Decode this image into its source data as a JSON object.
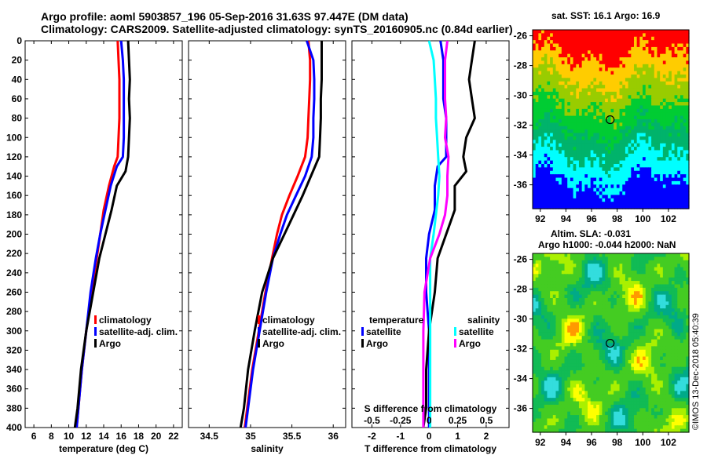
{
  "header": {
    "title_line1": "Argo profile: aoml 5903857_196 05-Sep-2016 31.63S 97.447E (DM data)",
    "title_line2": "Climatology: CARS2009. Satellite-adjusted climatology: synTS_20160905.nc (0.84d earlier)"
  },
  "sst_map": {
    "title": "sat. SST: 16.1 Argo: 16.9",
    "x_ticks": [
      "92",
      "94",
      "96",
      "98",
      "100",
      "102"
    ],
    "y_ticks": [
      "-26",
      "-28",
      "-30",
      "-32",
      "-34",
      "-36"
    ],
    "marker": {
      "lon": 97.45,
      "lat": -31.63
    }
  },
  "sla_map": {
    "title_line1": "Altim. SLA: -0.031",
    "title_line2": "Argo h1000: -0.044 h2000: NaN",
    "x_ticks": [
      "92",
      "94",
      "96",
      "98",
      "100",
      "102"
    ],
    "y_ticks": [
      "-26",
      "-28",
      "-30",
      "-32",
      "-34",
      "-36"
    ],
    "marker": {
      "lon": 97.45,
      "lat": -31.63
    },
    "credit": "©IMOS 13-Dec-2018 05:40:39"
  },
  "colors": {
    "climatology": "#ff0000",
    "satellite": "#0000ff",
    "argo": "#000000",
    "sat_salinity": "#00ffff",
    "argo_salinity": "#ff00ff"
  },
  "chart_data": [
    {
      "type": "line",
      "panel": "temperature",
      "xlabel": "temperature (deg C)",
      "ylabel": "",
      "xlim": [
        5,
        23
      ],
      "ylim": [
        0,
        400
      ],
      "x_ticks": [
        "6",
        "8",
        "10",
        "12",
        "14",
        "16",
        "18",
        "20",
        "22"
      ],
      "y_ticks": [
        "0",
        "20",
        "40",
        "60",
        "80",
        "100",
        "120",
        "140",
        "160",
        "180",
        "200",
        "220",
        "240",
        "260",
        "280",
        "300",
        "320",
        "340",
        "360",
        "380",
        "400"
      ],
      "legend": [
        "climatology",
        "satellite-adj. clim.",
        "Argo"
      ],
      "series": [
        {
          "name": "climatology",
          "color": "#ff0000",
          "points": [
            [
              15.6,
              0
            ],
            [
              15.7,
              20
            ],
            [
              15.8,
              40
            ],
            [
              15.8,
              60
            ],
            [
              15.8,
              80
            ],
            [
              15.7,
              100
            ],
            [
              15.6,
              120
            ],
            [
              15.2,
              130
            ],
            [
              14.6,
              150
            ],
            [
              14.0,
              175
            ],
            [
              13.6,
              200
            ],
            [
              13.2,
              225
            ],
            [
              12.6,
              260
            ],
            [
              12.0,
              300
            ],
            [
              11.5,
              340
            ],
            [
              11.1,
              380
            ],
            [
              10.9,
              400
            ]
          ]
        },
        {
          "name": "satellite-adj. clim.",
          "color": "#0000ff",
          "points": [
            [
              16.0,
              0
            ],
            [
              16.2,
              20
            ],
            [
              16.3,
              40
            ],
            [
              16.3,
              60
            ],
            [
              16.3,
              80
            ],
            [
              16.3,
              100
            ],
            [
              16.2,
              120
            ],
            [
              15.5,
              130
            ],
            [
              14.8,
              150
            ],
            [
              14.2,
              175
            ],
            [
              13.6,
              200
            ],
            [
              13.1,
              225
            ],
            [
              12.5,
              260
            ],
            [
              12.0,
              300
            ],
            [
              11.5,
              340
            ],
            [
              11.1,
              380
            ],
            [
              10.9,
              400
            ]
          ]
        },
        {
          "name": "Argo",
          "color": "#000000",
          "points": [
            [
              16.8,
              0
            ],
            [
              16.9,
              20
            ],
            [
              17.0,
              40
            ],
            [
              16.9,
              60
            ],
            [
              17.0,
              80
            ],
            [
              16.9,
              100
            ],
            [
              16.8,
              120
            ],
            [
              16.5,
              135
            ],
            [
              15.5,
              150
            ],
            [
              14.9,
              175
            ],
            [
              14.2,
              200
            ],
            [
              13.5,
              225
            ],
            [
              12.8,
              260
            ],
            [
              12.0,
              300
            ],
            [
              11.4,
              340
            ],
            [
              11.0,
              380
            ],
            [
              10.7,
              400
            ]
          ]
        }
      ]
    },
    {
      "type": "line",
      "panel": "salinity",
      "xlabel": "salinity",
      "ylabel": "",
      "xlim": [
        34.25,
        36.15
      ],
      "ylim": [
        0,
        400
      ],
      "x_ticks": [
        "34.5",
        "35",
        "35.5",
        "36"
      ],
      "legend": [
        "climatology",
        "satellite-adj. clim.",
        "Argo"
      ],
      "series": [
        {
          "name": "climatology",
          "color": "#ff0000",
          "points": [
            [
              35.7,
              0
            ],
            [
              35.72,
              20
            ],
            [
              35.72,
              40
            ],
            [
              35.71,
              60
            ],
            [
              35.7,
              80
            ],
            [
              35.69,
              100
            ],
            [
              35.66,
              120
            ],
            [
              35.57,
              140
            ],
            [
              35.47,
              160
            ],
            [
              35.38,
              180
            ],
            [
              35.32,
              200
            ],
            [
              35.26,
              225
            ],
            [
              35.18,
              260
            ],
            [
              35.1,
              300
            ],
            [
              35.02,
              340
            ],
            [
              34.96,
              380
            ],
            [
              34.93,
              400
            ]
          ]
        },
        {
          "name": "satellite-adj. clim.",
          "color": "#0000ff",
          "points": [
            [
              35.68,
              0
            ],
            [
              35.76,
              20
            ],
            [
              35.77,
              40
            ],
            [
              35.77,
              60
            ],
            [
              35.76,
              80
            ],
            [
              35.76,
              100
            ],
            [
              35.74,
              120
            ],
            [
              35.66,
              140
            ],
            [
              35.55,
              160
            ],
            [
              35.44,
              180
            ],
            [
              35.36,
              200
            ],
            [
              35.27,
              225
            ],
            [
              35.19,
              260
            ],
            [
              35.11,
              300
            ],
            [
              35.03,
              340
            ],
            [
              34.97,
              380
            ],
            [
              34.94,
              400
            ]
          ]
        },
        {
          "name": "Argo",
          "color": "#000000",
          "points": [
            [
              35.86,
              0
            ],
            [
              35.86,
              20
            ],
            [
              35.86,
              40
            ],
            [
              35.85,
              60
            ],
            [
              35.85,
              80
            ],
            [
              35.84,
              100
            ],
            [
              35.83,
              120
            ],
            [
              35.73,
              140
            ],
            [
              35.63,
              160
            ],
            [
              35.52,
              180
            ],
            [
              35.41,
              200
            ],
            [
              35.27,
              225
            ],
            [
              35.14,
              260
            ],
            [
              35.05,
              300
            ],
            [
              34.97,
              340
            ],
            [
              34.92,
              380
            ],
            [
              34.88,
              400
            ]
          ]
        }
      ]
    },
    {
      "type": "line",
      "panel": "difference",
      "xlabel": "T difference from climatology",
      "top_label": "S difference from climatology",
      "ylabel": "",
      "xlim": [
        -2.7,
        2.8
      ],
      "ylim": [
        0,
        400
      ],
      "x_ticks": [
        "-2",
        "-1",
        "0",
        "1",
        "2"
      ],
      "s_ticks": [
        "-0.5",
        "-0.25",
        "0",
        "0.25",
        "0.5"
      ],
      "legend_temperature": {
        "heading": "temperature",
        "entries": [
          "satellite",
          "Argo"
        ]
      },
      "legend_salinity": {
        "heading": "salinity",
        "entries": [
          "satellite",
          "Argo"
        ]
      },
      "series": [
        {
          "name": "temperature satellite",
          "color": "#0000ff",
          "points": [
            [
              0.4,
              0
            ],
            [
              0.5,
              20
            ],
            [
              0.5,
              40
            ],
            [
              0.5,
              60
            ],
            [
              0.6,
              80
            ],
            [
              0.6,
              100
            ],
            [
              0.6,
              120
            ],
            [
              0.3,
              130
            ],
            [
              0.2,
              150
            ],
            [
              0.2,
              175
            ],
            [
              0.0,
              200
            ],
            [
              -0.1,
              225
            ],
            [
              -0.1,
              260
            ],
            [
              0.0,
              300
            ],
            [
              0.0,
              340
            ],
            [
              0.0,
              380
            ],
            [
              0.0,
              400
            ]
          ]
        },
        {
          "name": "temperature Argo",
          "color": "#000000",
          "points": [
            [
              1.6,
              0
            ],
            [
              1.5,
              20
            ],
            [
              1.4,
              40
            ],
            [
              1.5,
              60
            ],
            [
              1.6,
              80
            ],
            [
              1.3,
              100
            ],
            [
              1.2,
              120
            ],
            [
              1.3,
              135
            ],
            [
              0.9,
              150
            ],
            [
              0.9,
              175
            ],
            [
              0.6,
              200
            ],
            [
              0.3,
              225
            ],
            [
              0.2,
              260
            ],
            [
              0.0,
              300
            ],
            [
              -0.1,
              340
            ],
            [
              -0.1,
              380
            ],
            [
              -0.2,
              400
            ]
          ]
        },
        {
          "name": "salinity satellite",
          "color": "#00ffff",
          "points": [
            [
              0.0,
              0
            ],
            [
              0.04,
              20
            ],
            [
              0.05,
              40
            ],
            [
              0.06,
              60
            ],
            [
              0.06,
              80
            ],
            [
              0.07,
              100
            ],
            [
              0.08,
              120
            ],
            [
              0.09,
              140
            ],
            [
              0.08,
              160
            ],
            [
              0.06,
              180
            ],
            [
              0.04,
              200
            ],
            [
              0.01,
              225
            ],
            [
              0.01,
              260
            ],
            [
              0.01,
              300
            ],
            [
              0.01,
              340
            ],
            [
              0.01,
              380
            ],
            [
              0.01,
              400
            ]
          ]
        },
        {
          "name": "salinity Argo",
          "color": "#ff00ff",
          "points": [
            [
              0.16,
              0
            ],
            [
              0.14,
              20
            ],
            [
              0.14,
              40
            ],
            [
              0.14,
              60
            ],
            [
              0.15,
              80
            ],
            [
              0.14,
              100
            ],
            [
              0.17,
              120
            ],
            [
              0.16,
              140
            ],
            [
              0.16,
              160
            ],
            [
              0.14,
              180
            ],
            [
              0.09,
              200
            ],
            [
              0.01,
              225
            ],
            [
              -0.04,
              260
            ],
            [
              -0.05,
              300
            ],
            [
              -0.05,
              340
            ],
            [
              -0.05,
              380
            ],
            [
              -0.05,
              400
            ]
          ]
        }
      ]
    }
  ]
}
